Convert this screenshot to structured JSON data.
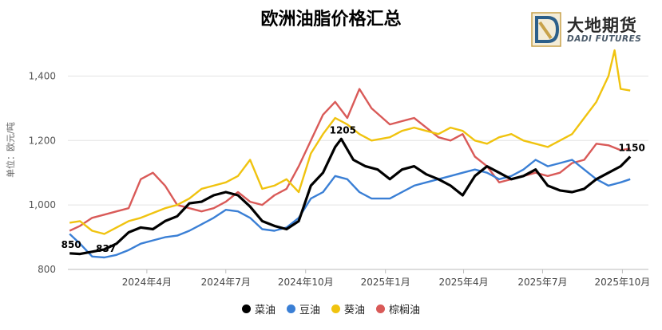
{
  "title": "欧洲油脂价格汇总",
  "logo": {
    "name": "大地期货",
    "sub": "DADI FUTURES"
  },
  "chart_data": {
    "type": "line",
    "title": "欧洲油脂价格汇总",
    "ylabel": "单位：欧元/吨",
    "xlabel": "",
    "ylim": [
      800,
      1500
    ],
    "xlim": [
      "2024-01-01",
      "2025-10-31"
    ],
    "yticks": [
      800,
      1000,
      1200,
      1400
    ],
    "xticks": [
      {
        "date": "2024-04-01",
        "label": "2024年4月"
      },
      {
        "date": "2024-07-01",
        "label": "2024年7月"
      },
      {
        "date": "2024-10-01",
        "label": "2024年10月"
      },
      {
        "date": "2025-01-01",
        "label": "2025年1月"
      },
      {
        "date": "2025-04-01",
        "label": "2025年4月"
      },
      {
        "date": "2025-07-01",
        "label": "2025年7月"
      },
      {
        "date": "2025-10-01",
        "label": "2025年10月"
      }
    ],
    "grid": true,
    "legend_position": "bottom",
    "series": [
      {
        "name": "菜油",
        "color": "#000000",
        "points": [
          [
            "2024-01-03",
            850
          ],
          [
            "2024-01-15",
            848
          ],
          [
            "2024-01-29",
            855
          ],
          [
            "2024-02-12",
            862
          ],
          [
            "2024-02-26",
            880
          ],
          [
            "2024-03-11",
            915
          ],
          [
            "2024-03-25",
            930
          ],
          [
            "2024-04-08",
            925
          ],
          [
            "2024-04-22",
            950
          ],
          [
            "2024-05-06",
            965
          ],
          [
            "2024-05-20",
            1005
          ],
          [
            "2024-06-03",
            1010
          ],
          [
            "2024-06-17",
            1030
          ],
          [
            "2024-07-01",
            1040
          ],
          [
            "2024-07-15",
            1030
          ],
          [
            "2024-07-29",
            995
          ],
          [
            "2024-08-12",
            950
          ],
          [
            "2024-08-26",
            935
          ],
          [
            "2024-09-09",
            925
          ],
          [
            "2024-09-23",
            950
          ],
          [
            "2024-10-07",
            1060
          ],
          [
            "2024-10-21",
            1100
          ],
          [
            "2024-11-04",
            1180
          ],
          [
            "2024-11-11",
            1205
          ],
          [
            "2024-11-25",
            1140
          ],
          [
            "2024-12-09",
            1120
          ],
          [
            "2024-12-23",
            1110
          ],
          [
            "2025-01-06",
            1080
          ],
          [
            "2025-01-20",
            1110
          ],
          [
            "2025-02-03",
            1120
          ],
          [
            "2025-02-17",
            1095
          ],
          [
            "2025-03-03",
            1080
          ],
          [
            "2025-03-17",
            1060
          ],
          [
            "2025-03-31",
            1030
          ],
          [
            "2025-04-14",
            1090
          ],
          [
            "2025-04-28",
            1120
          ],
          [
            "2025-05-12",
            1100
          ],
          [
            "2025-05-26",
            1080
          ],
          [
            "2025-06-09",
            1090
          ],
          [
            "2025-06-23",
            1110
          ],
          [
            "2025-07-07",
            1060
          ],
          [
            "2025-07-21",
            1045
          ],
          [
            "2025-08-04",
            1040
          ],
          [
            "2025-08-18",
            1050
          ],
          [
            "2025-09-01",
            1080
          ],
          [
            "2025-09-15",
            1100
          ],
          [
            "2025-09-29",
            1120
          ],
          [
            "2025-10-10",
            1150
          ]
        ],
        "labels": [
          {
            "date": "2024-01-03",
            "value": 850,
            "text": "850"
          },
          {
            "date": "2024-11-11",
            "value": 1205,
            "text": "1205"
          },
          {
            "date": "2025-10-10",
            "value": 1150,
            "text": "1150"
          }
        ]
      },
      {
        "name": "豆油",
        "color": "#3a7fd5",
        "points": [
          [
            "2024-01-03",
            910
          ],
          [
            "2024-01-15",
            880
          ],
          [
            "2024-01-29",
            840
          ],
          [
            "2024-02-12",
            837
          ],
          [
            "2024-02-26",
            845
          ],
          [
            "2024-03-11",
            860
          ],
          [
            "2024-03-25",
            880
          ],
          [
            "2024-04-08",
            890
          ],
          [
            "2024-04-22",
            900
          ],
          [
            "2024-05-06",
            905
          ],
          [
            "2024-05-20",
            920
          ],
          [
            "2024-06-03",
            940
          ],
          [
            "2024-06-17",
            960
          ],
          [
            "2024-07-01",
            985
          ],
          [
            "2024-07-15",
            980
          ],
          [
            "2024-07-29",
            960
          ],
          [
            "2024-08-12",
            925
          ],
          [
            "2024-08-26",
            920
          ],
          [
            "2024-09-09",
            930
          ],
          [
            "2024-09-23",
            960
          ],
          [
            "2024-10-07",
            1020
          ],
          [
            "2024-10-21",
            1040
          ],
          [
            "2024-11-04",
            1090
          ],
          [
            "2024-11-18",
            1080
          ],
          [
            "2024-12-02",
            1040
          ],
          [
            "2024-12-16",
            1020
          ],
          [
            "2025-01-06",
            1020
          ],
          [
            "2025-01-20",
            1040
          ],
          [
            "2025-02-03",
            1060
          ],
          [
            "2025-02-17",
            1070
          ],
          [
            "2025-03-03",
            1080
          ],
          [
            "2025-03-17",
            1090
          ],
          [
            "2025-03-31",
            1100
          ],
          [
            "2025-04-14",
            1110
          ],
          [
            "2025-04-28",
            1100
          ],
          [
            "2025-05-12",
            1080
          ],
          [
            "2025-05-26",
            1090
          ],
          [
            "2025-06-09",
            1110
          ],
          [
            "2025-06-23",
            1140
          ],
          [
            "2025-07-07",
            1120
          ],
          [
            "2025-07-21",
            1130
          ],
          [
            "2025-08-04",
            1140
          ],
          [
            "2025-08-18",
            1110
          ],
          [
            "2025-09-01",
            1080
          ],
          [
            "2025-09-15",
            1060
          ],
          [
            "2025-09-29",
            1070
          ],
          [
            "2025-10-10",
            1080
          ]
        ],
        "labels": [
          {
            "date": "2024-02-12",
            "value": 837,
            "text": "837"
          }
        ]
      },
      {
        "name": "葵油",
        "color": "#f0c30f",
        "points": [
          [
            "2024-01-03",
            945
          ],
          [
            "2024-01-15",
            950
          ],
          [
            "2024-01-29",
            920
          ],
          [
            "2024-02-12",
            910
          ],
          [
            "2024-02-26",
            930
          ],
          [
            "2024-03-11",
            950
          ],
          [
            "2024-03-25",
            960
          ],
          [
            "2024-04-08",
            975
          ],
          [
            "2024-04-22",
            990
          ],
          [
            "2024-05-06",
            1000
          ],
          [
            "2024-05-20",
            1020
          ],
          [
            "2024-06-03",
            1050
          ],
          [
            "2024-06-17",
            1060
          ],
          [
            "2024-07-01",
            1070
          ],
          [
            "2024-07-15",
            1090
          ],
          [
            "2024-07-29",
            1140
          ],
          [
            "2024-08-12",
            1050
          ],
          [
            "2024-08-26",
            1060
          ],
          [
            "2024-09-09",
            1080
          ],
          [
            "2024-09-23",
            1040
          ],
          [
            "2024-10-07",
            1160
          ],
          [
            "2024-10-21",
            1220
          ],
          [
            "2024-11-04",
            1270
          ],
          [
            "2024-11-18",
            1250
          ],
          [
            "2024-12-02",
            1220
          ],
          [
            "2024-12-16",
            1200
          ],
          [
            "2025-01-06",
            1210
          ],
          [
            "2025-01-20",
            1230
          ],
          [
            "2025-02-03",
            1240
          ],
          [
            "2025-02-17",
            1230
          ],
          [
            "2025-03-03",
            1220
          ],
          [
            "2025-03-17",
            1240
          ],
          [
            "2025-03-31",
            1230
          ],
          [
            "2025-04-14",
            1200
          ],
          [
            "2025-04-28",
            1190
          ],
          [
            "2025-05-12",
            1210
          ],
          [
            "2025-05-26",
            1220
          ],
          [
            "2025-06-09",
            1200
          ],
          [
            "2025-06-23",
            1190
          ],
          [
            "2025-07-07",
            1180
          ],
          [
            "2025-07-21",
            1200
          ],
          [
            "2025-08-04",
            1220
          ],
          [
            "2025-08-18",
            1270
          ],
          [
            "2025-09-01",
            1320
          ],
          [
            "2025-09-15",
            1400
          ],
          [
            "2025-09-22",
            1480
          ],
          [
            "2025-09-29",
            1360
          ],
          [
            "2025-10-10",
            1355
          ]
        ],
        "labels": []
      },
      {
        "name": "棕榈油",
        "color": "#d95a58",
        "points": [
          [
            "2024-01-03",
            920
          ],
          [
            "2024-01-15",
            935
          ],
          [
            "2024-01-29",
            960
          ],
          [
            "2024-02-12",
            970
          ],
          [
            "2024-02-26",
            980
          ],
          [
            "2024-03-11",
            990
          ],
          [
            "2024-03-25",
            1080
          ],
          [
            "2024-04-08",
            1100
          ],
          [
            "2024-04-22",
            1060
          ],
          [
            "2024-05-06",
            1000
          ],
          [
            "2024-05-20",
            990
          ],
          [
            "2024-06-03",
            980
          ],
          [
            "2024-06-17",
            990
          ],
          [
            "2024-07-01",
            1010
          ],
          [
            "2024-07-15",
            1040
          ],
          [
            "2024-07-29",
            1010
          ],
          [
            "2024-08-12",
            1000
          ],
          [
            "2024-08-26",
            1030
          ],
          [
            "2024-09-09",
            1050
          ],
          [
            "2024-09-23",
            1120
          ],
          [
            "2024-10-07",
            1200
          ],
          [
            "2024-10-21",
            1280
          ],
          [
            "2024-11-04",
            1320
          ],
          [
            "2024-11-18",
            1270
          ],
          [
            "2024-12-02",
            1360
          ],
          [
            "2024-12-16",
            1300
          ],
          [
            "2025-01-06",
            1250
          ],
          [
            "2025-01-20",
            1260
          ],
          [
            "2025-02-03",
            1270
          ],
          [
            "2025-02-17",
            1240
          ],
          [
            "2025-03-03",
            1210
          ],
          [
            "2025-03-17",
            1200
          ],
          [
            "2025-03-31",
            1220
          ],
          [
            "2025-04-14",
            1150
          ],
          [
            "2025-04-28",
            1120
          ],
          [
            "2025-05-12",
            1070
          ],
          [
            "2025-05-26",
            1080
          ],
          [
            "2025-06-09",
            1090
          ],
          [
            "2025-06-23",
            1100
          ],
          [
            "2025-07-07",
            1090
          ],
          [
            "2025-07-21",
            1100
          ],
          [
            "2025-08-04",
            1130
          ],
          [
            "2025-08-18",
            1140
          ],
          [
            "2025-09-01",
            1190
          ],
          [
            "2025-09-15",
            1185
          ],
          [
            "2025-09-29",
            1170
          ],
          [
            "2025-10-10",
            1175
          ]
        ],
        "labels": []
      }
    ]
  }
}
